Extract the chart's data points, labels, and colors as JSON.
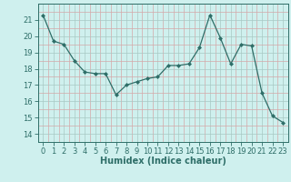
{
  "x": [
    0,
    1,
    2,
    3,
    4,
    5,
    6,
    7,
    8,
    9,
    10,
    11,
    12,
    13,
    14,
    15,
    16,
    17,
    18,
    19,
    20,
    21,
    22,
    23
  ],
  "y": [
    21.3,
    19.7,
    19.5,
    18.5,
    17.8,
    17.7,
    17.7,
    16.4,
    17.0,
    17.2,
    17.4,
    17.5,
    18.2,
    18.2,
    18.3,
    19.3,
    21.3,
    19.9,
    18.3,
    19.5,
    19.4,
    16.5,
    15.1,
    14.7
  ],
  "xlabel": "Humidex (Indice chaleur)",
  "ylim": [
    13.5,
    22.0
  ],
  "xlim": [
    -0.5,
    23.5
  ],
  "bg_color": "#cff0ee",
  "major_grid_color": "#b8d8d4",
  "minor_grid_color": "#e8c8c8",
  "line_color": "#2e6e68",
  "yticks": [
    14,
    15,
    16,
    17,
    18,
    19,
    20,
    21
  ],
  "xticks": [
    0,
    1,
    2,
    3,
    4,
    5,
    6,
    7,
    8,
    9,
    10,
    11,
    12,
    13,
    14,
    15,
    16,
    17,
    18,
    19,
    20,
    21,
    22,
    23
  ]
}
